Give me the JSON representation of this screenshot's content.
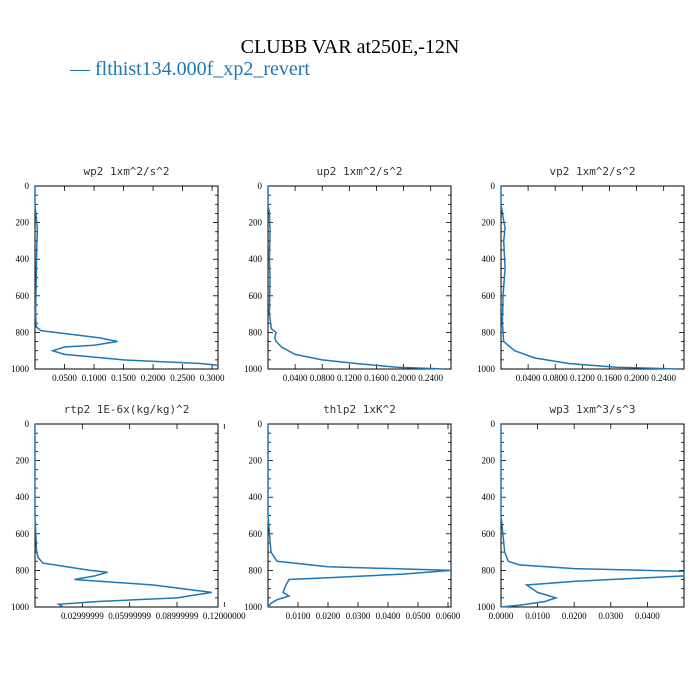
{
  "title": "CLUBB VAR at250E,-12N",
  "legend": {
    "marker": "—",
    "label": "flthist134.000f_xp2_revert",
    "color": "#1f77b4"
  },
  "line_color": "#1f77b4",
  "chart_data": [
    {
      "type": "line",
      "title": "wp2  1xm^2/s^2",
      "xlim": [
        0,
        0.31
      ],
      "ylim": [
        1000,
        0
      ],
      "y_inverted": true,
      "xticks": [
        "0.0500",
        "0.1000",
        "0.1500",
        "0.2000",
        "0.2500",
        "0.3000"
      ],
      "xtick_values": [
        0.05,
        0.1,
        0.15,
        0.2,
        0.25,
        0.3
      ],
      "yticks": [
        "0",
        "200",
        "400",
        "600",
        "800",
        "1000"
      ],
      "series": [
        {
          "x": [
            0.0,
            0.0,
            0.003,
            0.004,
            0.003,
            0.002,
            0.001,
            0.002,
            0.01,
            0.06,
            0.11,
            0.14,
            0.1,
            0.05,
            0.03,
            0.05,
            0.15,
            0.28,
            0.31
          ],
          "y": [
            0,
            100,
            200,
            250,
            320,
            500,
            700,
            770,
            790,
            810,
            830,
            850,
            870,
            880,
            900,
            920,
            950,
            970,
            980
          ]
        }
      ]
    },
    {
      "type": "line",
      "title": "up2  1xm^2/s^2",
      "xlim": [
        0,
        0.27
      ],
      "ylim": [
        1000,
        0
      ],
      "y_inverted": true,
      "xticks": [
        "0.0400",
        "0.0800",
        "0.1200",
        "0.1600",
        "0.2000",
        "0.2400"
      ],
      "xtick_values": [
        0.04,
        0.08,
        0.12,
        0.16,
        0.2,
        0.24
      ],
      "yticks": [
        "0",
        "200",
        "400",
        "600",
        "800",
        "1000"
      ],
      "series": [
        {
          "x": [
            0.0,
            0.0,
            0.002,
            0.003,
            0.002,
            0.003,
            0.002,
            0.005,
            0.012,
            0.01,
            0.012,
            0.02,
            0.04,
            0.08,
            0.13,
            0.19,
            0.26
          ],
          "y": [
            0,
            100,
            150,
            250,
            400,
            500,
            700,
            780,
            800,
            830,
            850,
            880,
            920,
            950,
            970,
            990,
            1000
          ]
        }
      ]
    },
    {
      "type": "line",
      "title": "vp2  1xm^2/s^2",
      "xlim": [
        0,
        0.27
      ],
      "ylim": [
        1000,
        0
      ],
      "y_inverted": true,
      "xticks": [
        "0.0400",
        "0.0800",
        "0.1200",
        "0.1600",
        "0.2000",
        "0.2400"
      ],
      "xtick_values": [
        0.04,
        0.08,
        0.12,
        0.16,
        0.2,
        0.24
      ],
      "yticks": [
        "0",
        "200",
        "400",
        "600",
        "800",
        "1000"
      ],
      "series": [
        {
          "x": [
            0.0,
            0.0,
            0.003,
            0.006,
            0.004,
            0.006,
            0.003,
            0.002,
            0.004,
            0.02,
            0.05,
            0.1,
            0.17,
            0.26
          ],
          "y": [
            0,
            100,
            170,
            230,
            300,
            450,
            600,
            750,
            850,
            900,
            940,
            970,
            990,
            1000
          ]
        }
      ]
    },
    {
      "type": "line",
      "title": "rtp2  1E-6x(kg/kg)^2",
      "xlim": [
        0.0,
        0.116
      ],
      "ylim": [
        1000,
        0
      ],
      "y_inverted": true,
      "xticks": [
        "0.02999999",
        "0.05999999",
        "0.08999999",
        "0.12000000"
      ],
      "xtick_values": [
        0.03,
        0.06,
        0.09,
        0.12
      ],
      "yticks": [
        "0",
        "200",
        "400",
        "600",
        "800",
        "1000"
      ],
      "series": [
        {
          "x": [
            0.0,
            0.0,
            0.001,
            0.002,
            0.005,
            0.02,
            0.035,
            0.046,
            0.038,
            0.025,
            0.075,
            0.112,
            0.09,
            0.04,
            0.015,
            0.018
          ],
          "y": [
            0,
            500,
            700,
            730,
            760,
            780,
            800,
            810,
            830,
            850,
            880,
            920,
            950,
            970,
            985,
            1000
          ]
        }
      ]
    },
    {
      "type": "line",
      "title": "thlp2  1xK^2",
      "xlim": [
        0,
        0.061
      ],
      "ylim": [
        1000,
        0
      ],
      "y_inverted": true,
      "xticks": [
        "0.0100",
        "0.0200",
        "0.0300",
        "0.0400",
        "0.0500",
        "0.0600"
      ],
      "xtick_values": [
        0.01,
        0.02,
        0.03,
        0.04,
        0.05,
        0.06
      ],
      "yticks": [
        "0",
        "200",
        "400",
        "600",
        "800",
        "1000"
      ],
      "series": [
        {
          "x": [
            0.0,
            0.0,
            0.001,
            0.003,
            0.02,
            0.061,
            0.045,
            0.02,
            0.007,
            0.006,
            0.005,
            0.007,
            0.005,
            0.003,
            0.001,
            0.0
          ],
          "y": [
            0,
            500,
            700,
            750,
            780,
            800,
            820,
            840,
            850,
            880,
            920,
            940,
            950,
            960,
            980,
            1000
          ]
        }
      ]
    },
    {
      "type": "line",
      "title": "wp3  1xm^3/s^3",
      "xlim": [
        0,
        0.05
      ],
      "ylim": [
        1000,
        0
      ],
      "y_inverted": true,
      "xticks": [
        "0.0000",
        "0.0100",
        "0.0200",
        "0.0300",
        "0.0400"
      ],
      "xtick_values": [
        0.0,
        0.01,
        0.02,
        0.03,
        0.04
      ],
      "yticks": [
        "0",
        "200",
        "400",
        "600",
        "800",
        "1000"
      ],
      "series": [
        {
          "x": [
            0.0,
            0.0,
            0.001,
            0.002,
            0.005,
            0.02,
            0.05,
            0.05,
            0.02,
            0.007,
            0.01,
            0.015,
            0.012,
            0.005,
            0.0
          ],
          "y": [
            0,
            500,
            700,
            750,
            770,
            790,
            805,
            830,
            860,
            880,
            920,
            950,
            970,
            990,
            1000
          ]
        }
      ]
    }
  ]
}
